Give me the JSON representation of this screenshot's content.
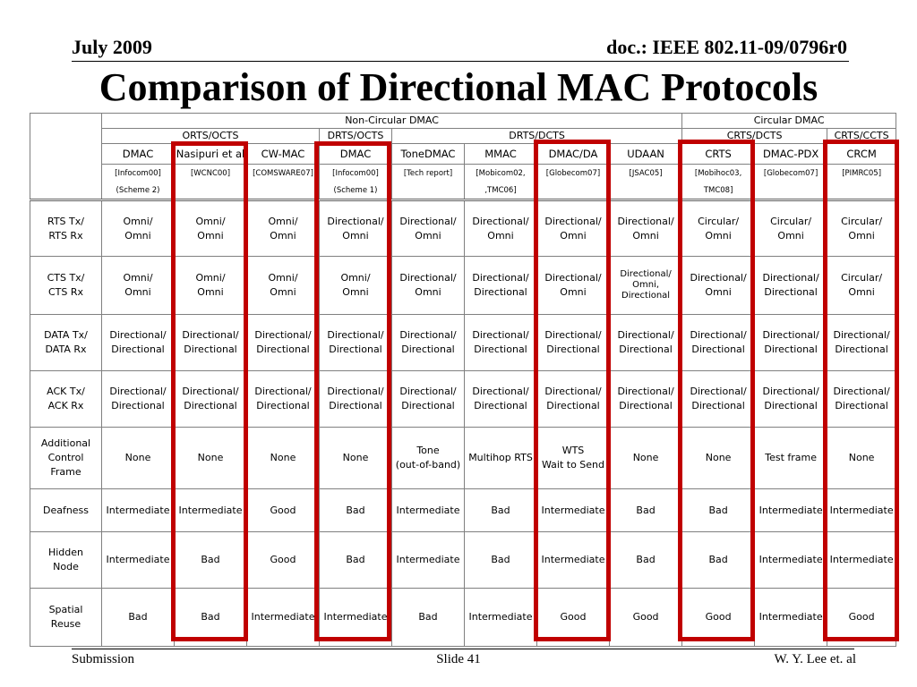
{
  "header": {
    "date": "July 2009",
    "doc": "doc.: IEEE 802.11-09/0796r0"
  },
  "title": "Comparison of Directional MAC Protocols",
  "table": {
    "group_top": [
      "Non-Circular DMAC",
      "Circular DMAC"
    ],
    "group_mid": [
      "ORTS/OCTS",
      "DRTS/OCTS",
      "DRTS/DCTS",
      "CRTS/DCTS",
      "CRTS/CCTS"
    ],
    "protocols": [
      "DMAC",
      "Nasipuri et al",
      "CW-MAC",
      "DMAC",
      "ToneDMAC",
      "MMAC",
      "DMAC/DA",
      "UDAAN",
      "CRTS",
      "DMAC-PDX",
      "CRCM"
    ],
    "cite1": [
      "[Infocom00]",
      "[WCNC00]",
      "[COMSWARE07]",
      "[Infocom00]",
      "[Tech report]",
      "[Mobicom02,",
      "[Globecom07]",
      "[JSAC05]",
      "[Mobihoc03,",
      "[Globecom07]",
      "[PIMRC05]"
    ],
    "cite2": [
      "(Scheme 2)",
      "",
      "",
      "(Scheme 1)",
      "",
      ",TMC06]",
      "",
      "",
      "TMC08]",
      "",
      ""
    ],
    "rows": [
      {
        "label": [
          "RTS Tx/",
          "RTS Rx"
        ],
        "cells": [
          [
            "Omni/",
            "Omni"
          ],
          [
            "Omni/",
            "Omni"
          ],
          [
            "Omni/",
            "Omni"
          ],
          [
            "Directional/",
            "Omni"
          ],
          [
            "Directional/",
            "Omni"
          ],
          [
            "Directional/",
            "Omni"
          ],
          [
            "Directional/",
            "Omni"
          ],
          [
            "Directional/",
            "Omni"
          ],
          [
            "Circular/",
            "Omni"
          ],
          [
            "Circular/",
            "Omni"
          ],
          [
            "Circular/",
            "Omni"
          ]
        ]
      },
      {
        "label": [
          "CTS Tx/",
          "CTS Rx"
        ],
        "cells": [
          [
            "Omni/",
            "Omni"
          ],
          [
            "Omni/",
            "Omni"
          ],
          [
            "Omni/",
            "Omni"
          ],
          [
            "Omni/",
            "Omni"
          ],
          [
            "Directional/",
            "Omni"
          ],
          [
            "Directional/",
            "Directional"
          ],
          [
            "Directional/",
            "Omni"
          ],
          [
            "Directional/",
            "Omni,",
            "Directional"
          ],
          [
            "Directional/",
            "Omni"
          ],
          [
            "Directional/",
            "Directional"
          ],
          [
            "Circular/",
            "Omni"
          ]
        ]
      },
      {
        "label": [
          "DATA Tx/",
          "DATA Rx"
        ],
        "cells": [
          [
            "Directional/",
            "Directional"
          ],
          [
            "Directional/",
            "Directional"
          ],
          [
            "Directional/",
            "Directional"
          ],
          [
            "Directional/",
            "Directional"
          ],
          [
            "Directional/",
            "Directional"
          ],
          [
            "Directional/",
            "Directional"
          ],
          [
            "Directional/",
            "Directional"
          ],
          [
            "Directional/",
            "Directional"
          ],
          [
            "Directional/",
            "Directional"
          ],
          [
            "Directional/",
            "Directional"
          ],
          [
            "Directional/",
            "Directional"
          ]
        ]
      },
      {
        "label": [
          "ACK Tx/",
          "ACK Rx"
        ],
        "cells": [
          [
            "Directional/",
            "Directional"
          ],
          [
            "Directional/",
            "Directional"
          ],
          [
            "Directional/",
            "Directional"
          ],
          [
            "Directional/",
            "Directional"
          ],
          [
            "Directional/",
            "Directional"
          ],
          [
            "Directional/",
            "Directional"
          ],
          [
            "Directional/",
            "Directional"
          ],
          [
            "Directional/",
            "Directional"
          ],
          [
            "Directional/",
            "Directional"
          ],
          [
            "Directional/",
            "Directional"
          ],
          [
            "Directional/",
            "Directional"
          ]
        ]
      },
      {
        "label": [
          "Additional",
          "Control",
          "Frame"
        ],
        "cells": [
          [
            "None"
          ],
          [
            "None"
          ],
          [
            "None"
          ],
          [
            "None"
          ],
          [
            "Tone",
            "(out-of-band)"
          ],
          [
            "Multihop RTS"
          ],
          [
            "WTS",
            "Wait to Send"
          ],
          [
            "None"
          ],
          [
            "None"
          ],
          [
            "Test frame"
          ],
          [
            "None"
          ]
        ]
      },
      {
        "label": [
          "Deafness"
        ],
        "cells": [
          [
            "Intermediate"
          ],
          [
            "Intermediate"
          ],
          [
            "Good"
          ],
          [
            "Bad"
          ],
          [
            "Intermediate"
          ],
          [
            "Bad"
          ],
          [
            "Intermediate"
          ],
          [
            "Bad"
          ],
          [
            "Bad"
          ],
          [
            "Intermediate"
          ],
          [
            "Intermediate"
          ]
        ]
      },
      {
        "label": [
          "Hidden",
          "Node"
        ],
        "cells": [
          [
            "Intermediate"
          ],
          [
            "Bad"
          ],
          [
            "Good"
          ],
          [
            "Bad"
          ],
          [
            "Intermediate"
          ],
          [
            "Bad"
          ],
          [
            "Intermediate"
          ],
          [
            "Bad"
          ],
          [
            "Bad"
          ],
          [
            "Intermediate"
          ],
          [
            "Intermediate"
          ]
        ]
      },
      {
        "label": [
          "Spatial",
          "Reuse"
        ],
        "cells": [
          [
            "Bad"
          ],
          [
            "Bad"
          ],
          [
            "Intermediate"
          ],
          [
            "Intermediate"
          ],
          [
            "Bad"
          ],
          [
            "Intermediate"
          ],
          [
            "Good"
          ],
          [
            "Good"
          ],
          [
            "Good"
          ],
          [
            "Intermediate"
          ],
          [
            "Good"
          ]
        ]
      }
    ]
  },
  "highlight_color": "#c00000",
  "footer": {
    "left": "Submission",
    "center": "Slide 41",
    "right": "W. Y. Lee et. al"
  }
}
